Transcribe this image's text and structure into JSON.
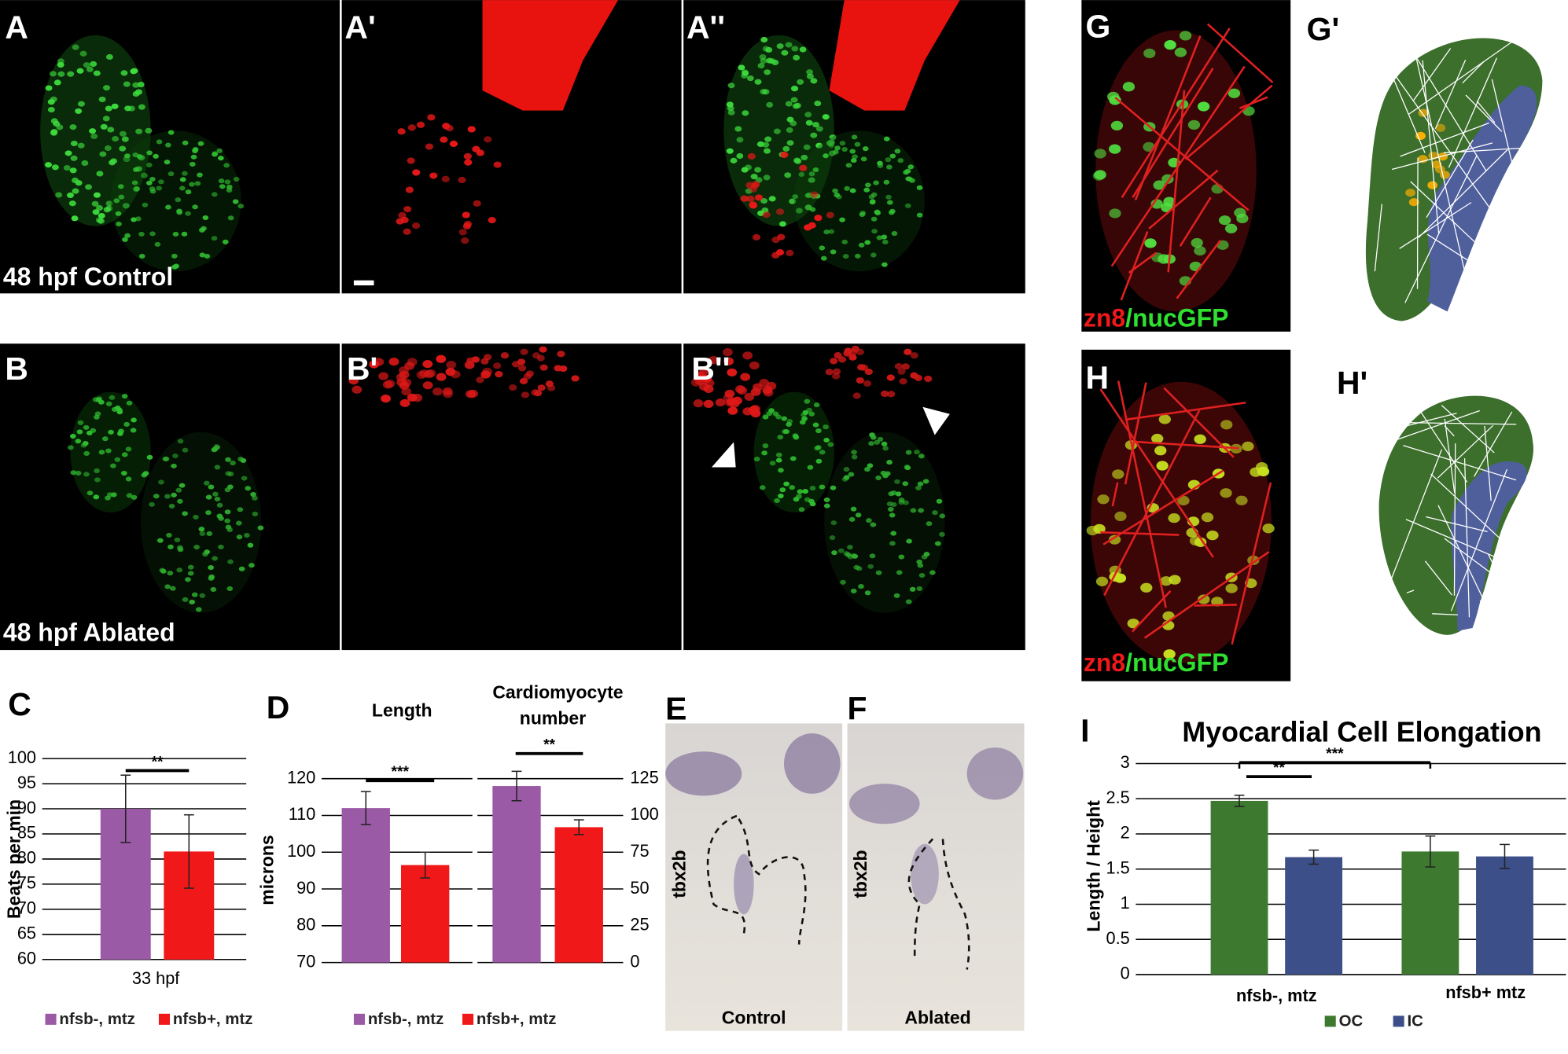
{
  "panels": [
    {
      "label": "A",
      "caption": "48 hpf Control"
    },
    {
      "label": "A'"
    },
    {
      "label": "A''"
    },
    {
      "label": "B",
      "caption": "48 hpf Ablated"
    },
    {
      "label": "B'"
    },
    {
      "label": "B''"
    },
    {
      "label": "G",
      "stain": [
        "zn8",
        "/nucGFP"
      ]
    },
    {
      "label": "G'"
    },
    {
      "label": "H",
      "stain": [
        "zn8",
        "/nucGFP"
      ]
    },
    {
      "label": "H'"
    },
    {
      "label": "E",
      "gene": "tbx2b",
      "caption": "Control"
    },
    {
      "label": "F",
      "gene": "tbx2b",
      "caption": "Ablated"
    }
  ],
  "chart_data": [
    {
      "type": "bar",
      "label": "C",
      "y_label": "Beats per min",
      "categories": [
        "33 hpf"
      ],
      "ylim": [
        60,
        100
      ],
      "yticks": [
        60,
        65,
        70,
        75,
        80,
        85,
        90,
        95,
        100
      ],
      "grid": true,
      "series": [
        {
          "name": "nfsb-, mtz",
          "color": "#9b5aa6",
          "values": [
            90
          ],
          "errors": [
            6.7
          ]
        },
        {
          "name": "nfsb+, mtz",
          "color": "#f01818",
          "values": [
            81.5
          ],
          "errors": [
            7.3
          ]
        }
      ],
      "annotations": [
        "**"
      ]
    },
    {
      "type": "bar",
      "label": "D",
      "y_label": "microns",
      "categories": [
        "Length",
        "Cardiomyocyte number"
      ],
      "category_axes": [
        "y",
        "y2"
      ],
      "ylim": [
        70,
        120
      ],
      "yticks": [
        70,
        80,
        90,
        100,
        110,
        120
      ],
      "y2lim": [
        0,
        125
      ],
      "y2ticks": [
        0,
        25,
        50,
        75,
        100,
        125
      ],
      "grid": true,
      "series": [
        {
          "name": "nfsb-, mtz",
          "color": "#9b5aa6",
          "values": [
            112,
            120
          ],
          "errors": [
            4.5,
            10
          ]
        },
        {
          "name": "nfsb+, mtz",
          "color": "#f01818",
          "values": [
            96.5,
            92
          ],
          "errors": [
            3.5,
            5
          ]
        }
      ],
      "annotations": [
        "***",
        "**"
      ]
    },
    {
      "type": "bar",
      "label": "I",
      "title": "Myocardial Cell Elongation",
      "y_label": "Length / Height",
      "categories": [
        "nfsb-, mtz",
        "nfsb+ mtz"
      ],
      "ylim": [
        0,
        3
      ],
      "yticks": [
        0,
        0.5,
        1,
        1.5,
        2,
        2.5,
        3
      ],
      "grid": true,
      "series": [
        {
          "name": "OC",
          "color": "#3d7a30",
          "values": [
            2.47,
            1.75
          ],
          "errors": [
            0.08,
            0.22
          ]
        },
        {
          "name": "IC",
          "color": "#3c4f88",
          "values": [
            1.67,
            1.68
          ],
          "errors": [
            0.1,
            0.17
          ]
        }
      ],
      "annotations": [
        "**",
        "***"
      ]
    }
  ]
}
